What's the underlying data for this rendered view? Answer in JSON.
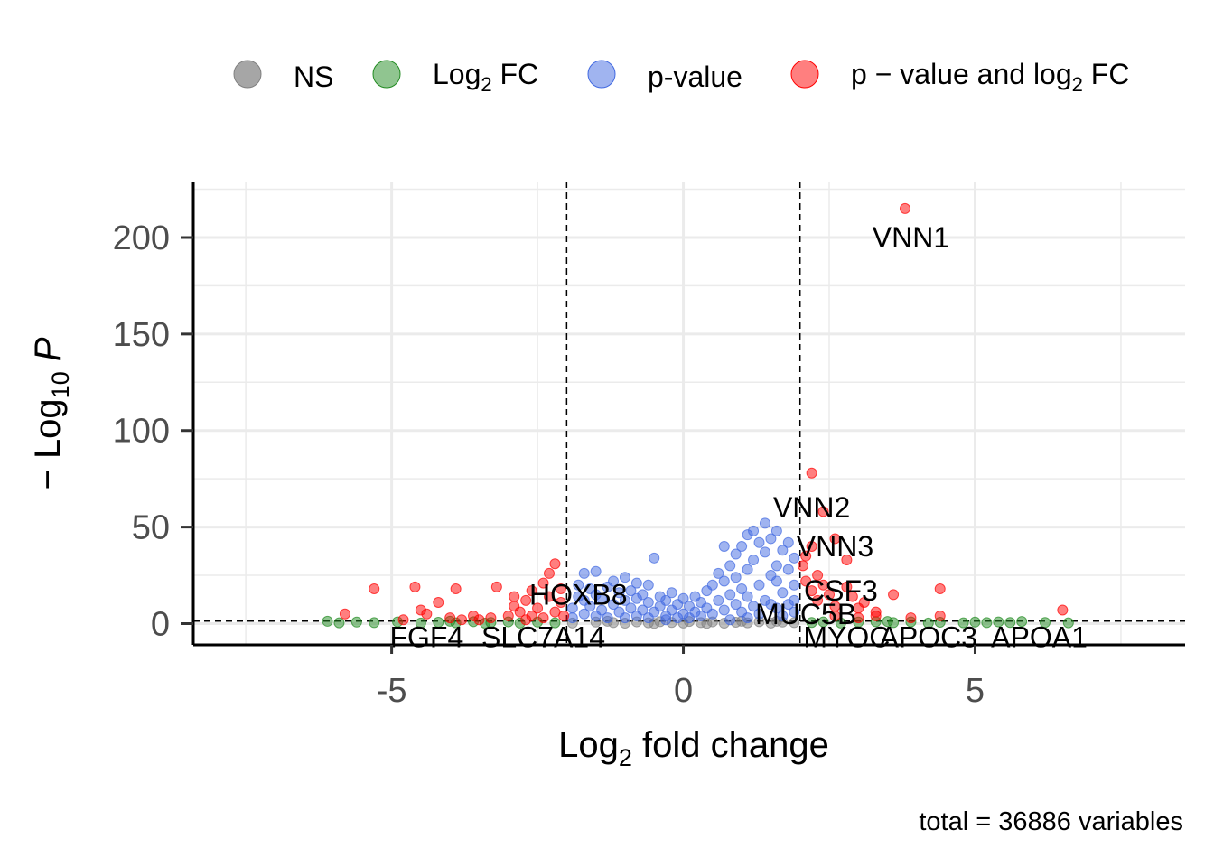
{
  "chart_data": {
    "type": "scatter",
    "xlabel_base": "Log",
    "xlabel_sub": "2",
    "xlabel_rest": " fold change",
    "ylabel_prefix": "− Log",
    "ylabel_sub": "10",
    "ylabel_rest": " P",
    "caption": "total = 36886 variables",
    "xlim": [
      -8.4,
      8.6
    ],
    "ylim": [
      -11,
      229
    ],
    "x_ticks": [
      -5,
      0,
      5
    ],
    "x_tick_labels": [
      "-5",
      "0",
      "5"
    ],
    "y_ticks": [
      0,
      50,
      100,
      150,
      200
    ],
    "y_tick_labels": [
      "0",
      "50",
      "100",
      "150",
      "200"
    ],
    "grid": true,
    "fc_cutoff": 2,
    "p_cutoff": 1.3,
    "legend": {
      "placement": "top",
      "items": [
        {
          "key": "ns",
          "label": "NS",
          "color": "#808080"
        },
        {
          "key": "fc",
          "label_base": "Log",
          "label_sub": "2",
          "label_rest": " FC",
          "color": "#228b22"
        },
        {
          "key": "p",
          "label": "p-value",
          "color": "#4169e1"
        },
        {
          "key": "both",
          "label_base": "p − value and log",
          "label_sub": "2",
          "label_rest": " FC",
          "color": "#ff0000"
        }
      ]
    },
    "colors": {
      "ns": "#808080",
      "fc": "#228b22",
      "p": "#4169e1",
      "both": "#ff0000"
    },
    "series": [
      {
        "key": "ns",
        "points": [
          [
            -1.9,
            0.3
          ],
          [
            -1.5,
            0.8
          ],
          [
            -1.2,
            0.5
          ],
          [
            -1.0,
            0.2
          ],
          [
            -0.8,
            0.9
          ],
          [
            -0.6,
            0.4
          ],
          [
            -0.4,
            1.0
          ],
          [
            -0.2,
            0.6
          ],
          [
            0.0,
            0.3
          ],
          [
            0.1,
            1.1
          ],
          [
            0.3,
            0.5
          ],
          [
            0.5,
            0.9
          ],
          [
            0.7,
            0.2
          ],
          [
            0.9,
            0.7
          ],
          [
            1.1,
            0.4
          ],
          [
            1.3,
            1.0
          ],
          [
            1.5,
            0.3
          ],
          [
            1.7,
            0.8
          ],
          [
            1.9,
            0.5
          ],
          [
            -1.3,
            1.2
          ],
          [
            0.4,
            0.1
          ],
          [
            1.0,
            1.2
          ],
          [
            -0.5,
            0.1
          ],
          [
            1.6,
            1.2
          ]
        ]
      },
      {
        "key": "fc",
        "points": [
          [
            -6.1,
            1.2
          ],
          [
            -5.9,
            0.4
          ],
          [
            -5.6,
            0.8
          ],
          [
            -5.3,
            0.5
          ],
          [
            -4.9,
            0.9
          ],
          [
            -4.5,
            0.3
          ],
          [
            -4.2,
            0.7
          ],
          [
            -3.9,
            0.4
          ],
          [
            -3.6,
            1.0
          ],
          [
            -3.3,
            0.6
          ],
          [
            -3.0,
            0.9
          ],
          [
            -2.8,
            0.3
          ],
          [
            -2.5,
            0.8
          ],
          [
            -2.2,
            0.4
          ],
          [
            2.2,
            0.6
          ],
          [
            2.4,
            0.9
          ],
          [
            2.7,
            0.3
          ],
          [
            3.0,
            0.8
          ],
          [
            3.3,
            1.0
          ],
          [
            3.6,
            0.5
          ],
          [
            3.9,
            0.9
          ],
          [
            4.2,
            0.3
          ],
          [
            4.4,
            0.7
          ],
          [
            4.8,
            0.4
          ],
          [
            5.0,
            0.8
          ],
          [
            5.2,
            0.5
          ],
          [
            5.4,
            0.9
          ],
          [
            5.6,
            0.6
          ],
          [
            5.8,
            1.1
          ],
          [
            6.2,
            0.6
          ],
          [
            6.6,
            0.4
          ],
          [
            -4.0,
            1.2
          ],
          [
            -3.4,
            0.2
          ],
          [
            3.5,
            1.1
          ]
        ]
      },
      {
        "key": "p",
        "points": [
          [
            -1.9,
            3
          ],
          [
            -1.9,
            8
          ],
          [
            -1.8,
            14
          ],
          [
            -1.8,
            20
          ],
          [
            -1.7,
            5
          ],
          [
            -1.7,
            12
          ],
          [
            -1.7,
            26
          ],
          [
            -1.6,
            9
          ],
          [
            -1.6,
            18
          ],
          [
            -1.5,
            4
          ],
          [
            -1.5,
            15
          ],
          [
            -1.5,
            27
          ],
          [
            -1.4,
            7
          ],
          [
            -1.4,
            13
          ],
          [
            -1.3,
            3
          ],
          [
            -1.3,
            19
          ],
          [
            -1.2,
            10
          ],
          [
            -1.2,
            22
          ],
          [
            -1.1,
            6
          ],
          [
            -1.1,
            16
          ],
          [
            -1.0,
            3
          ],
          [
            -1.0,
            12
          ],
          [
            -1.0,
            24
          ],
          [
            -0.9,
            8
          ],
          [
            -0.9,
            17
          ],
          [
            -0.8,
            4
          ],
          [
            -0.8,
            13
          ],
          [
            -0.8,
            21
          ],
          [
            -0.7,
            7
          ],
          [
            -0.7,
            15
          ],
          [
            -0.6,
            3
          ],
          [
            -0.6,
            11
          ],
          [
            -0.6,
            20
          ],
          [
            -0.5,
            6
          ],
          [
            -0.5,
            34
          ],
          [
            -0.4,
            9
          ],
          [
            -0.4,
            14
          ],
          [
            -0.3,
            4
          ],
          [
            -0.3,
            12
          ],
          [
            -0.2,
            7
          ],
          [
            -0.2,
            16
          ],
          [
            -0.1,
            3
          ],
          [
            -0.1,
            10
          ],
          [
            0.0,
            5
          ],
          [
            0.0,
            13
          ],
          [
            0.1,
            3
          ],
          [
            0.1,
            9
          ],
          [
            0.2,
            6
          ],
          [
            0.2,
            14
          ],
          [
            0.3,
            4
          ],
          [
            0.3,
            11
          ],
          [
            0.4,
            8
          ],
          [
            0.4,
            17
          ],
          [
            0.5,
            5
          ],
          [
            0.5,
            20
          ],
          [
            0.6,
            12
          ],
          [
            0.6,
            26
          ],
          [
            0.7,
            7
          ],
          [
            0.7,
            22
          ],
          [
            0.8,
            15
          ],
          [
            0.8,
            30
          ],
          [
            0.9,
            10
          ],
          [
            0.9,
            24
          ],
          [
            0.9,
            36
          ],
          [
            1.0,
            6
          ],
          [
            1.0,
            18
          ],
          [
            1.0,
            40
          ],
          [
            1.1,
            14
          ],
          [
            1.1,
            28
          ],
          [
            1.1,
            46
          ],
          [
            1.2,
            9
          ],
          [
            1.2,
            33
          ],
          [
            1.2,
            48
          ],
          [
            1.3,
            20
          ],
          [
            1.3,
            42
          ],
          [
            1.4,
            12
          ],
          [
            1.4,
            37
          ],
          [
            1.4,
            52
          ],
          [
            1.5,
            25
          ],
          [
            1.5,
            44
          ],
          [
            1.6,
            8
          ],
          [
            1.6,
            30
          ],
          [
            1.6,
            48
          ],
          [
            1.7,
            16
          ],
          [
            1.7,
            38
          ],
          [
            1.8,
            10
          ],
          [
            1.8,
            28
          ],
          [
            1.8,
            42
          ],
          [
            1.9,
            6
          ],
          [
            1.9,
            20
          ],
          [
            1.9,
            34
          ],
          [
            0.8,
            2
          ],
          [
            1.3,
            5
          ],
          [
            1.7,
            4
          ],
          [
            -0.3,
            2
          ],
          [
            1.5,
            10
          ],
          [
            1.1,
            3
          ],
          [
            1.9,
            12
          ],
          [
            0.7,
            40
          ],
          [
            1.6,
            22
          ]
        ]
      },
      {
        "key": "both",
        "points": [
          [
            -5.3,
            18
          ],
          [
            -4.6,
            19
          ],
          [
            -4.5,
            7
          ],
          [
            -4.4,
            5
          ],
          [
            -4.2,
            11
          ],
          [
            -4.0,
            3
          ],
          [
            -3.8,
            2
          ],
          [
            -3.6,
            4
          ],
          [
            -3.9,
            18
          ],
          [
            -3.5,
            2
          ],
          [
            -3.3,
            3
          ],
          [
            -3.2,
            19
          ],
          [
            -3.0,
            4
          ],
          [
            -2.9,
            9
          ],
          [
            -2.9,
            14
          ],
          [
            -2.8,
            6
          ],
          [
            -2.7,
            2
          ],
          [
            -2.7,
            12
          ],
          [
            -2.6,
            17
          ],
          [
            -2.5,
            8
          ],
          [
            -2.4,
            3
          ],
          [
            -2.4,
            21
          ],
          [
            -2.3,
            26
          ],
          [
            -2.3,
            14
          ],
          [
            -2.2,
            6
          ],
          [
            -2.2,
            31
          ],
          [
            -2.1,
            11
          ],
          [
            -2.1,
            18
          ],
          [
            -2.05,
            4
          ],
          [
            -5.8,
            5
          ],
          [
            -4.8,
            2
          ],
          [
            -2.6,
            4
          ],
          [
            2.05,
            30
          ],
          [
            2.1,
            35
          ],
          [
            2.1,
            22
          ],
          [
            2.2,
            40
          ],
          [
            2.2,
            17
          ],
          [
            2.2,
            78
          ],
          [
            2.3,
            25
          ],
          [
            2.3,
            12
          ],
          [
            2.4,
            58
          ],
          [
            2.4,
            20
          ],
          [
            2.5,
            15
          ],
          [
            2.6,
            44
          ],
          [
            2.6,
            9
          ],
          [
            2.8,
            33
          ],
          [
            2.8,
            19
          ],
          [
            2.9,
            14
          ],
          [
            3.0,
            8
          ],
          [
            3.1,
            11
          ],
          [
            3.3,
            6
          ],
          [
            3.6,
            15
          ],
          [
            3.3,
            4
          ],
          [
            3.9,
            3
          ],
          [
            4.4,
            18
          ],
          [
            4.4,
            4
          ],
          [
            6.5,
            7
          ],
          [
            2.6,
            4
          ],
          [
            3.0,
            3
          ],
          [
            3.8,
            215
          ]
        ]
      }
    ],
    "labels": [
      {
        "text": "VNN1",
        "x": 3.9,
        "y": 200
      },
      {
        "text": "VNN2",
        "x": 2.2,
        "y": 60
      },
      {
        "text": "VNN3",
        "x": 2.6,
        "y": 40
      },
      {
        "text": "CSF3",
        "x": 2.7,
        "y": 17
      },
      {
        "text": "MUC5B",
        "x": 2.1,
        "y": 5
      },
      {
        "text": "HOXB8",
        "x": -1.8,
        "y": 15
      },
      {
        "text": "FGF4",
        "x": -4.4,
        "y": -7
      },
      {
        "text": "SLC7A14",
        "x": -2.4,
        "y": -7
      },
      {
        "text": "MYOC",
        "x": 2.8,
        "y": -7
      },
      {
        "text": "APOC3",
        "x": 4.2,
        "y": -7
      },
      {
        "text": "APOA1",
        "x": 6.1,
        "y": -7
      }
    ]
  }
}
